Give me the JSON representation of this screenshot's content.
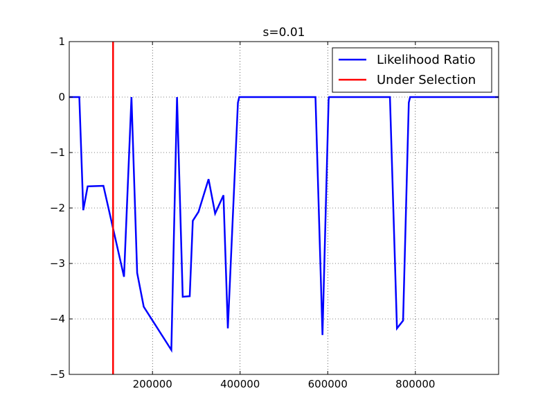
{
  "chart_data": {
    "type": "line",
    "title": "s=0.01",
    "xlabel": "",
    "ylabel": "",
    "xlim": [
      10000,
      990000
    ],
    "ylim": [
      -5,
      1
    ],
    "grid": true,
    "legend_position": "top-right",
    "xticks": [
      200000,
      400000,
      600000,
      800000
    ],
    "xtick_labels": [
      "200000",
      "400000",
      "600000",
      "800000"
    ],
    "yticks": [
      1,
      0,
      -1,
      -2,
      -3,
      -4,
      -5
    ],
    "ytick_labels": [
      "1",
      "0",
      "−1",
      "−2",
      "−3",
      "−4",
      "−5"
    ],
    "series": [
      {
        "name": "Likelihood Ratio",
        "color": "#0000ff",
        "x": [
          10000,
          33000,
          42000,
          52000,
          88000,
          135000,
          152000,
          165000,
          180000,
          243000,
          256000,
          269000,
          285000,
          292000,
          305000,
          328000,
          343000,
          362000,
          372000,
          395000,
          398000,
          572000,
          588000,
          602000,
          603000,
          742000,
          758000,
          772000,
          785000,
          788000,
          990000
        ],
        "y": [
          0,
          0,
          -2.04,
          -1.61,
          -1.6,
          -3.24,
          0,
          -3.17,
          -3.78,
          -4.56,
          0,
          -3.6,
          -3.59,
          -2.23,
          -2.07,
          -1.48,
          -2.1,
          -1.77,
          -4.17,
          -0.1,
          0,
          0,
          -4.29,
          -0.05,
          0,
          0,
          -4.17,
          -4.03,
          -0.1,
          0,
          0
        ]
      },
      {
        "name": "Under Selection",
        "color": "#ff0000",
        "x": [
          110000,
          110000
        ],
        "y": [
          -5,
          1
        ]
      }
    ]
  }
}
